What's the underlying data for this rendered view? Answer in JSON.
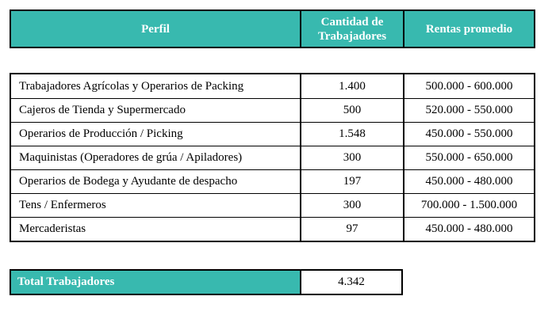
{
  "colors": {
    "accent_teal": "#38b9af",
    "border": "#000000",
    "header_text": "#ffffff",
    "body_text": "#000000"
  },
  "table": {
    "header": {
      "perfil": "Perfil",
      "cantidad": "Cantidad de Trabajadores",
      "rentas": "Rentas promedio"
    },
    "rows": [
      {
        "perfil": "Trabajadores Agrícolas y Operarios de Packing",
        "cantidad": "1.400",
        "rentas": "500.000 - 600.000"
      },
      {
        "perfil": "Cajeros de Tienda y Supermercado",
        "cantidad": "500",
        "rentas": "520.000 - 550.000"
      },
      {
        "perfil": "Operarios de Producción / Picking",
        "cantidad": "1.548",
        "rentas": "450.000 - 550.000"
      },
      {
        "perfil": "Maquinistas (Operadores de grúa / Apiladores)",
        "cantidad": "300",
        "rentas": "550.000 - 650.000"
      },
      {
        "perfil": "Operarios de Bodega y Ayudante de despacho",
        "cantidad": "197",
        "rentas": "450.000 - 480.000"
      },
      {
        "perfil": "Tens / Enfermeros",
        "cantidad": "300",
        "rentas": "700.000 - 1.500.000"
      },
      {
        "perfil": "Mercaderistas",
        "cantidad": "97",
        "rentas": "450.000 - 480.000"
      }
    ],
    "total": {
      "label": "Total Trabajadores",
      "value": "4.342"
    }
  }
}
